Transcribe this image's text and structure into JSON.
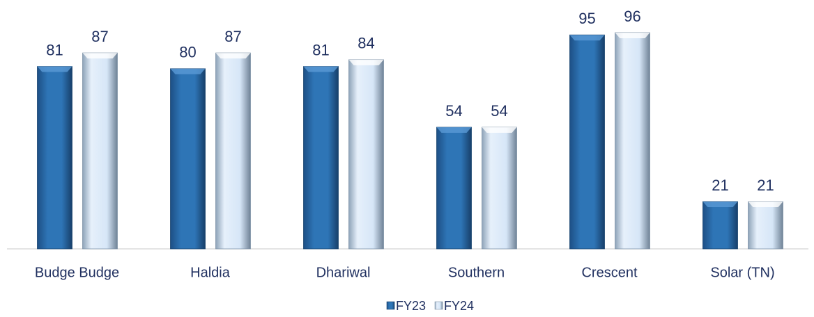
{
  "chart_data": {
    "type": "bar",
    "categories": [
      "Budge Budge",
      "Haldia",
      "Dhariwal",
      "Southern",
      "Crescent",
      "Solar (TN)"
    ],
    "series": [
      {
        "name": "FY23",
        "color": "#2e75b6",
        "values": [
          81,
          80,
          81,
          54,
          95,
          21
        ]
      },
      {
        "name": "FY24",
        "color": "#d6e6f7",
        "values": [
          87,
          87,
          84,
          54,
          96,
          21
        ]
      }
    ],
    "legend": "bottom"
  }
}
